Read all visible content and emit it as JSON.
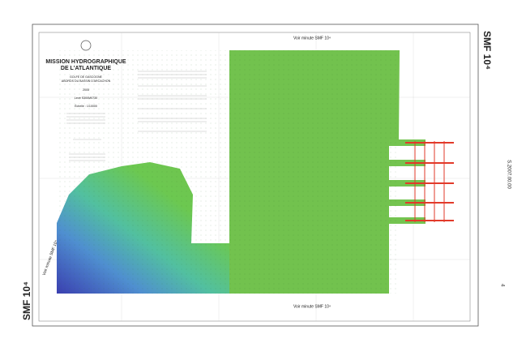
{
  "sheet": {
    "code_top": "SMF 10⁴",
    "code_bottom": "SMF 10⁴",
    "adjacent_top": "Voir minute SMF 10⁴",
    "adjacent_bottom": "Voir minute SMF 10⁴",
    "adjacent_left": "Voir minute SMF 10⁴",
    "side_reference": "S.2007.00.00",
    "corner_number": "4"
  },
  "cartouche": {
    "title_1": "MISSION HYDROGRAPHIQUE",
    "title_2": "DE L'ATLANTIQUE",
    "region_1": "GOLFE DE GASCOGNE",
    "region_2": "ABORDS DU BASSIN D'ARCACHON",
    "year": "2005",
    "survey": "Levé S300M0730",
    "scale": "Échelle : 1/10000"
  }
}
